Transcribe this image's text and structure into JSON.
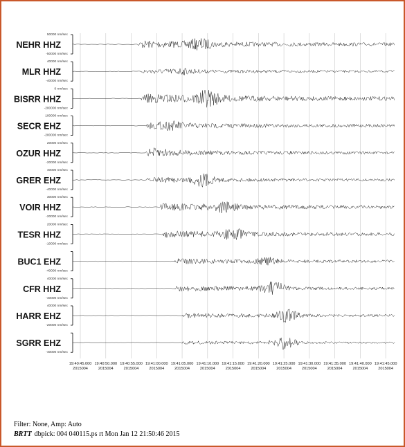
{
  "chart_data": {
    "type": "line",
    "traces": [
      {
        "station": "NEHR HHZ",
        "scale": [
          "50000 nm/sec",
          "-50000 nm/sec"
        ],
        "onset_time": "19:40:56.500",
        "amplitude": 0.62,
        "burst_time": "19:41:08.500",
        "burst_amp": 0.55
      },
      {
        "station": "MLR HHZ",
        "scale": [
          "40000 nm/sec",
          "-40000 nm/sec"
        ],
        "onset_time": "19:40:57.000",
        "amplitude": 0.4,
        "burst_time": "19:41:05.000",
        "burst_amp": 0.25
      },
      {
        "station": "BISRR HHZ",
        "scale": [
          "0 nm/sec",
          "-200000 nm/sec"
        ],
        "onset_time": "19:40:57.000",
        "amplitude": 0.75,
        "burst_time": "19:41:10.000",
        "burst_amp": 0.85
      },
      {
        "station": "SECR EHZ",
        "scale": [
          "100000 nm/sec",
          "-200000 nm/sec"
        ],
        "onset_time": "19:40:58.000",
        "amplitude": 0.55,
        "burst_time": "19:41:03.000",
        "burst_amp": 0.3
      },
      {
        "station": "OZUR HHZ",
        "scale": [
          "20000 nm/sec",
          "-20000 nm/sec"
        ],
        "onset_time": "19:40:58.000",
        "amplitude": 0.5,
        "burst_time": "19:41:00.000",
        "burst_amp": 0.3
      },
      {
        "station": "GRER EHZ",
        "scale": [
          "40000 nm/sec",
          "-40000 nm/sec"
        ],
        "onset_time": "19:40:58.000",
        "amplitude": 0.45,
        "burst_time": "19:41:09.000",
        "burst_amp": 0.75
      },
      {
        "station": "VOIR HHZ",
        "scale": [
          "30000 nm/sec",
          "-20000 nm/sec"
        ],
        "onset_time": "19:41:00.500",
        "amplitude": 0.6,
        "burst_time": "19:41:13.000",
        "burst_amp": 0.55
      },
      {
        "station": "TESR HHZ",
        "scale": [
          "20000 nm/sec",
          "-10000 nm/sec"
        ],
        "onset_time": "19:41:01.000",
        "amplitude": 0.55,
        "burst_time": "19:41:15.000",
        "burst_amp": 0.65
      },
      {
        "station": "BUC1 EHZ",
        "scale": [
          "",
          "-40000 nm/sec"
        ],
        "onset_time": "19:41:03.500",
        "amplitude": 0.45,
        "burst_time": "19:41:22.000",
        "burst_amp": 0.4
      },
      {
        "station": "CFR HHZ",
        "scale": [
          "40000 nm/sec",
          "-40000 nm/sec"
        ],
        "onset_time": "19:41:03.500",
        "amplitude": 0.45,
        "burst_time": "19:41:23.000",
        "burst_amp": 0.85
      },
      {
        "station": "HARR EHZ",
        "scale": [
          "40000 nm/sec",
          "-20000 nm/sec"
        ],
        "onset_time": "19:41:05.000",
        "amplitude": 0.4,
        "burst_time": "19:41:25.500",
        "burst_amp": 0.8
      },
      {
        "station": "SGRR EHZ",
        "scale": [
          "",
          "-40000 nm/sec"
        ],
        "onset_time": "19:41:05.000",
        "amplitude": 0.3,
        "burst_time": "19:41:25.000",
        "burst_amp": 0.9
      }
    ],
    "x_ticks": [
      {
        "time": "19:40:45.000",
        "date": "2015004"
      },
      {
        "time": "19:40:50.000",
        "date": "2015004"
      },
      {
        "time": "19:40:55.000",
        "date": "2015004"
      },
      {
        "time": "19:41:00.000",
        "date": "2015004"
      },
      {
        "time": "19:41:05.000",
        "date": "2015004"
      },
      {
        "time": "19:41:10.000",
        "date": "2015004"
      },
      {
        "time": "19:41:15.000",
        "date": "2015004"
      },
      {
        "time": "19:41:20.000",
        "date": "2015004"
      },
      {
        "time": "19:41:25.000",
        "date": "2015004"
      },
      {
        "time": "19:41:30.000",
        "date": "2015004"
      },
      {
        "time": "19:41:35.000",
        "date": "2015004"
      },
      {
        "time": "19:41:40.000",
        "date": "2015004"
      },
      {
        "time": "19:41:45.000",
        "date": "2015004"
      }
    ],
    "grid": true,
    "colors": {
      "trace": "#111111",
      "grid": "#c8c8c8",
      "frame": "#c9582a"
    }
  },
  "footer": {
    "filter": "Filter: None, Amp: Auto",
    "brtt_bold": "BRTT",
    "brtt_rest": "dbpick: 004 040115.ps rt Mon Jan 12 21:50:46 2015"
  }
}
